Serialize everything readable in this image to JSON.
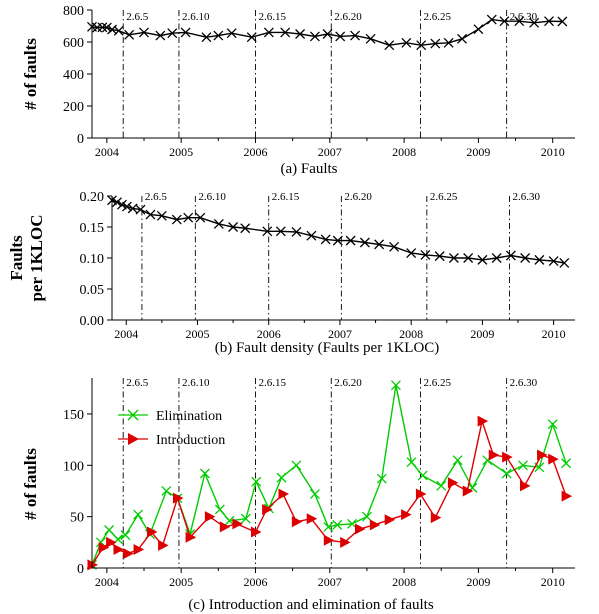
{
  "release_labels": [
    "2.6.5",
    "2.6.10",
    "2.6.15",
    "2.6.20",
    "2.6.25",
    "2.6.30"
  ],
  "colors": {
    "axis": "#000000",
    "faults": "#000000",
    "elimination": "#00cc00",
    "introduction": "#dd0000"
  },
  "chart_data": [
    {
      "type": "line",
      "caption": "(a)  Faults",
      "ylabel": "# of faults",
      "xlabel": "",
      "xlim": [
        2003.8,
        2010.3
      ],
      "ylim": [
        0,
        800
      ],
      "y_ticks": [
        0,
        200,
        400,
        600,
        800
      ],
      "x_ticks": [
        2004,
        2005,
        2006,
        2007,
        2008,
        2009,
        2010
      ],
      "release_dates": [
        2004.22,
        2004.97,
        2006.0,
        2007.02,
        2008.22,
        2009.38
      ],
      "grid": false,
      "series": [
        {
          "marker": "x",
          "x": [
            2003.8,
            2003.87,
            2003.94,
            2004.0,
            2004.07,
            2004.16,
            2004.3,
            2004.5,
            2004.72,
            2004.88,
            2005.06,
            2005.34,
            2005.5,
            2005.68,
            2005.95,
            2006.18,
            2006.4,
            2006.6,
            2006.8,
            2006.97,
            2007.14,
            2007.34,
            2007.55,
            2007.8,
            2008.03,
            2008.23,
            2008.42,
            2008.6,
            2008.78,
            2009.0,
            2009.18,
            2009.35,
            2009.55,
            2009.75,
            2009.95,
            2010.13
          ],
          "y": [
            695,
            690,
            692,
            690,
            678,
            670,
            645,
            660,
            640,
            655,
            660,
            630,
            640,
            655,
            630,
            660,
            660,
            650,
            635,
            650,
            635,
            640,
            620,
            580,
            595,
            580,
            590,
            595,
            620,
            680,
            740,
            730,
            730,
            720,
            730,
            728
          ]
        }
      ]
    },
    {
      "type": "line",
      "caption": "(b)  Fault density (Faults per 1KLOC)",
      "ylabel_lines": [
        "Faults",
        "per 1KLOC"
      ],
      "xlabel": "",
      "xlim": [
        2003.8,
        2010.3
      ],
      "ylim": [
        0.0,
        0.2
      ],
      "y_ticks": [
        "0.00",
        "0.05",
        "0.10",
        "0.15",
        "0.20"
      ],
      "x_ticks": [
        2004,
        2005,
        2006,
        2007,
        2008,
        2009,
        2010
      ],
      "release_dates": [
        2004.22,
        2004.97,
        2006.0,
        2007.02,
        2008.22,
        2009.38
      ],
      "grid": false,
      "series": [
        {
          "marker": "x",
          "x": [
            2003.8,
            2003.87,
            2003.94,
            2004.01,
            2004.09,
            2004.2,
            2004.34,
            2004.5,
            2004.71,
            2004.87,
            2005.04,
            2005.3,
            2005.5,
            2005.67,
            2005.98,
            2006.17,
            2006.39,
            2006.6,
            2006.8,
            2006.97,
            2007.15,
            2007.35,
            2007.55,
            2007.76,
            2008.0,
            2008.2,
            2008.4,
            2008.6,
            2008.8,
            2009.0,
            2009.2,
            2009.4,
            2009.6,
            2009.8,
            2010.0,
            2010.15
          ],
          "y": [
            0.193,
            0.19,
            0.186,
            0.183,
            0.18,
            0.178,
            0.17,
            0.168,
            0.162,
            0.165,
            0.165,
            0.155,
            0.15,
            0.148,
            0.143,
            0.143,
            0.142,
            0.136,
            0.13,
            0.128,
            0.128,
            0.125,
            0.122,
            0.118,
            0.108,
            0.105,
            0.103,
            0.1,
            0.1,
            0.097,
            0.1,
            0.104,
            0.1,
            0.097,
            0.095,
            0.092
          ]
        }
      ]
    },
    {
      "type": "line",
      "caption": "(c)  Introduction and elimination of faults",
      "ylabel": "# of faults",
      "xlabel": "",
      "xlim": [
        2003.8,
        2010.3
      ],
      "ylim": [
        0,
        185
      ],
      "y_ticks": [
        0,
        50,
        100,
        150
      ],
      "x_ticks": [
        2004,
        2005,
        2006,
        2007,
        2008,
        2009,
        2010
      ],
      "release_dates": [
        2004.22,
        2004.97,
        2006.0,
        2007.02,
        2008.22,
        2009.38
      ],
      "grid": false,
      "legend_position": "top-left",
      "series": [
        {
          "name": "Elimination",
          "marker": "x",
          "color": "#00cc00",
          "x": [
            2003.8,
            2003.92,
            2004.03,
            2004.15,
            2004.25,
            2004.42,
            2004.58,
            2004.8,
            2004.95,
            2005.12,
            2005.32,
            2005.52,
            2005.65,
            2005.87,
            2006.01,
            2006.18,
            2006.35,
            2006.55,
            2006.8,
            2006.98,
            2007.1,
            2007.3,
            2007.5,
            2007.7,
            2007.89,
            2008.1,
            2008.25,
            2008.5,
            2008.72,
            2008.92,
            2009.12,
            2009.38,
            2009.6,
            2009.82,
            2010.0,
            2010.18
          ],
          "y": [
            3,
            25,
            37,
            28,
            32,
            52,
            33,
            75,
            68,
            33,
            92,
            57,
            46,
            48,
            84,
            58,
            88,
            100,
            72,
            40,
            42,
            43,
            50,
            87,
            178,
            103,
            90,
            80,
            105,
            78,
            105,
            92,
            100,
            98,
            140,
            102
          ]
        },
        {
          "name": "Introduction",
          "marker": "triangle-right",
          "color": "#dd0000",
          "x": [
            2003.8,
            2003.95,
            2004.05,
            2004.15,
            2004.28,
            2004.42,
            2004.6,
            2004.75,
            2004.95,
            2005.12,
            2005.38,
            2005.58,
            2005.75,
            2006.0,
            2006.15,
            2006.37,
            2006.55,
            2006.75,
            2006.98,
            2007.2,
            2007.4,
            2007.6,
            2007.8,
            2008.02,
            2008.22,
            2008.42,
            2008.65,
            2008.85,
            2009.05,
            2009.2,
            2009.38,
            2009.62,
            2009.85,
            2010.0,
            2010.18
          ],
          "y": [
            3,
            20,
            25,
            18,
            14,
            18,
            35,
            22,
            68,
            30,
            50,
            40,
            43,
            35,
            57,
            72,
            45,
            48,
            27,
            25,
            38,
            42,
            47,
            52,
            72,
            49,
            83,
            75,
            143,
            110,
            108,
            80,
            110,
            106,
            70
          ]
        }
      ]
    }
  ]
}
